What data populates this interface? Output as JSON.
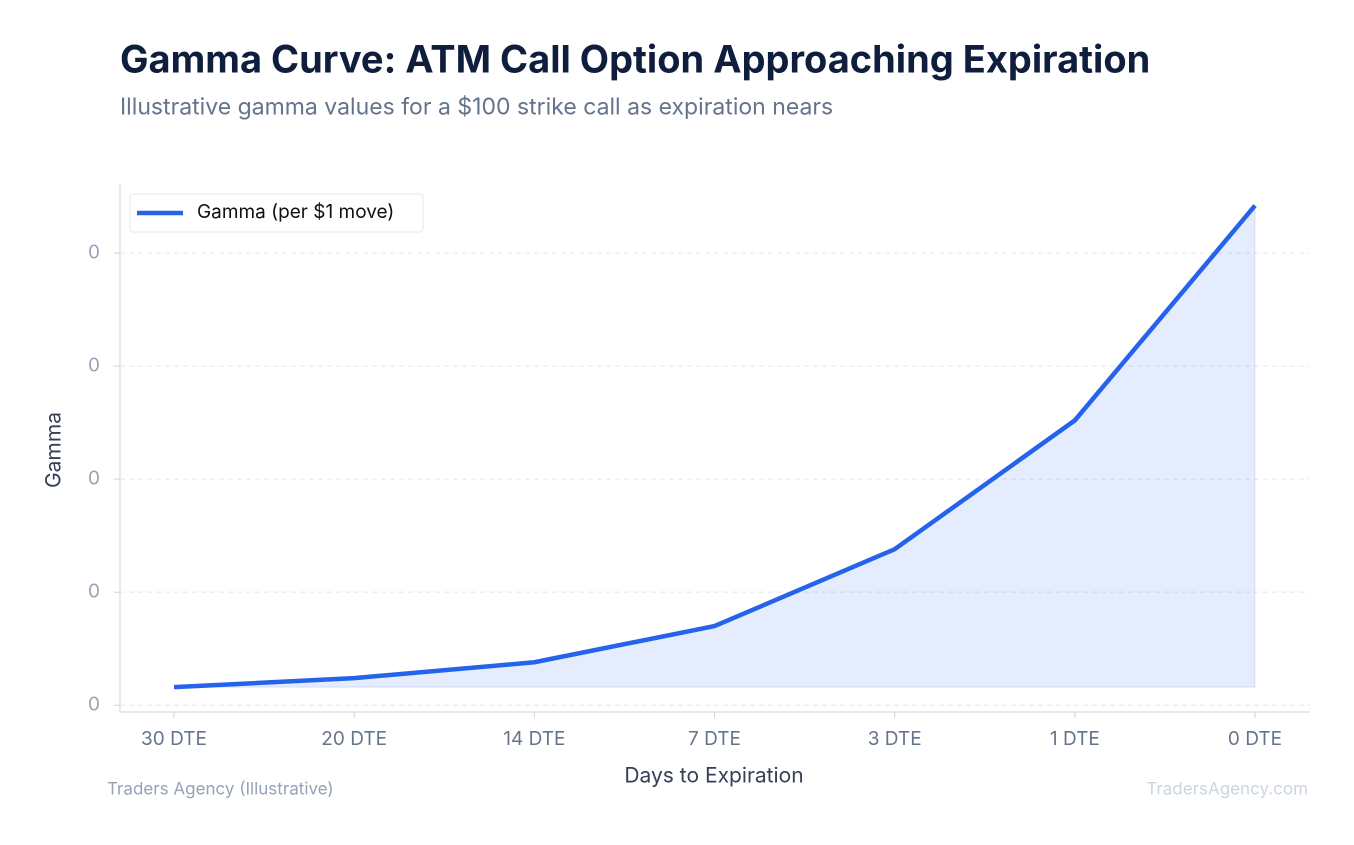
{
  "chart_data": {
    "type": "line",
    "title": "Gamma Curve: ATM Call Option Approaching Expiration",
    "subtitle": "Illustrative gamma values for a $100 strike call as expiration nears",
    "x_label": "Days to Expiration",
    "y_label": "Gamma",
    "categories": [
      "30 DTE",
      "20 DTE",
      "14 DTE",
      "7 DTE",
      "3 DTE",
      "1 DTE",
      "0 DTE"
    ],
    "series": [
      {
        "name": "Gamma (per $1 move)",
        "color": "#2563eb",
        "values": [
          0.008,
          0.012,
          0.019,
          0.035,
          0.069,
          0.126,
          0.221
        ]
      }
    ],
    "ylim": [
      -0.003,
      0.231
    ],
    "yticks": [
      0,
      {
        "value": 0.05,
        "label": "0"
      },
      {
        "value": 0.1,
        "label": "0"
      },
      {
        "value": 0.15,
        "label": "0"
      },
      {
        "value": 0.2,
        "label": "0"
      }
    ],
    "grid": true,
    "legend": "top-left",
    "source": "Traders Agency (Illustrative)",
    "watermark": "TradersAgency.com"
  }
}
